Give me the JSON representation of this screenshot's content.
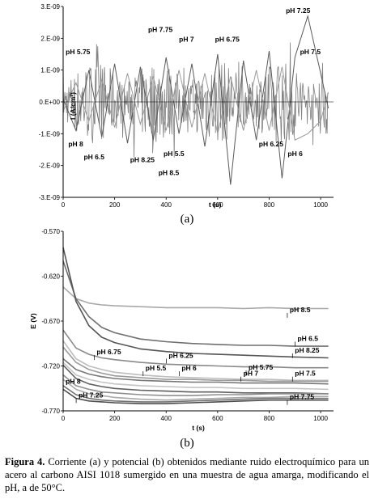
{
  "chart_data": [
    {
      "type": "line",
      "panel_label": "(a)",
      "xlabel": "t (s)",
      "ylabel": "I (A/cm²)",
      "xlim": [
        0,
        1050
      ],
      "ylim": [
        -3e-09,
        3e-09
      ],
      "x_ticks": [
        "0",
        "200",
        "400",
        "600",
        "800",
        "1000"
      ],
      "x_tick_values": [
        0,
        200,
        400,
        600,
        800,
        1000
      ],
      "y_ticks": [
        "3.E-09",
        "2.E-09",
        "1.E-09",
        "0.E+00",
        "-1.E-09",
        "-2.E-09",
        "-3.E-09"
      ],
      "y_tick_values": [
        3e-09,
        2e-09,
        1e-09,
        0,
        -1e-09,
        -2e-09,
        -3e-09
      ],
      "grid": false,
      "series_color": "#7f7f7f",
      "x": [
        0,
        50,
        100,
        150,
        200,
        250,
        300,
        350,
        400,
        450,
        500,
        550,
        600,
        650,
        700,
        750,
        800,
        850,
        900,
        950,
        1000,
        1030
      ],
      "series": [
        {
          "values": [
            1e-10,
            -9e-10,
            1e-09,
            -1.1e-09,
            1.2e-09,
            -1.3e-09,
            1.1e-09,
            -1.2e-09,
            1.4e-09,
            -1e-09,
            1.2e-09,
            -1.4e-09,
            1.5e-09,
            -2.6e-09,
            1.3e-09,
            -1.2e-09,
            1.6e-09,
            -2.4e-09,
            1.4e-09,
            2.7e-09,
            9e-10,
            -2e-10
          ]
        },
        {
          "values": [
            -3e-10,
            6e-10,
            -6e-10,
            7e-10,
            -8e-10,
            9e-10,
            -7e-10,
            8e-10,
            -9e-10,
            1e-09,
            -8e-10,
            9e-10,
            -1e-09,
            8e-10,
            -9e-10,
            1e-09,
            -9e-10,
            1.1e-09,
            -1.2e-09,
            -1e-09,
            -6e-10,
            3e-10
          ]
        }
      ],
      "annotations": [
        {
          "text": "pH 5.75",
          "x": 10,
          "y": 1.5e-09
        },
        {
          "text": "pH 7.75",
          "x": 330,
          "y": 2.2e-09
        },
        {
          "text": "pH 7",
          "x": 450,
          "y": 1.9e-09
        },
        {
          "text": "pH 6.75",
          "x": 590,
          "y": 1.9e-09
        },
        {
          "text": "pH 7.25",
          "x": 960,
          "y": 2.8e-09
        },
        {
          "text": "pH 7.5",
          "x": 1000,
          "y": 1.5e-09
        },
        {
          "text": "pH 8",
          "x": 20,
          "y": -1.4e-09
        },
        {
          "text": "pH 6.5",
          "x": 80,
          "y": -1.8e-09
        },
        {
          "text": "pH 8.25",
          "x": 260,
          "y": -1.9e-09
        },
        {
          "text": "pH 5.5",
          "x": 390,
          "y": -1.7e-09
        },
        {
          "text": "pH 8.5",
          "x": 370,
          "y": -2.3e-09
        },
        {
          "text": "pH 6.25",
          "x": 760,
          "y": -1.4e-09
        },
        {
          "text": "pH 6",
          "x": 930,
          "y": -1.7e-09
        }
      ]
    },
    {
      "type": "line",
      "panel_label": "(b)",
      "xlabel": "t (s)",
      "ylabel": "E (V)",
      "xlim": [
        0,
        1050
      ],
      "ylim": [
        -0.77,
        -0.57
      ],
      "x_ticks": [
        "0",
        "200",
        "400",
        "600",
        "800",
        "1000"
      ],
      "x_tick_values": [
        0,
        200,
        400,
        600,
        800,
        1000
      ],
      "y_ticks": [
        "-0.570",
        "-0.620",
        "-0.670",
        "-0.720",
        "-0.770"
      ],
      "y_tick_values": [
        -0.57,
        -0.62,
        -0.67,
        -0.72,
        -0.77
      ],
      "grid": false,
      "x": [
        0,
        50,
        100,
        150,
        200,
        300,
        400,
        500,
        600,
        700,
        800,
        900,
        1030
      ],
      "series": [
        {
          "name": "pH 8.5",
          "values": [
            -0.632,
            -0.645,
            -0.65,
            -0.652,
            -0.653,
            -0.654,
            -0.655,
            -0.655,
            -0.655,
            -0.656,
            -0.655,
            -0.656,
            -0.656
          ]
        },
        {
          "name": "pH 6.5",
          "values": [
            -0.603,
            -0.645,
            -0.665,
            -0.677,
            -0.683,
            -0.69,
            -0.693,
            -0.695,
            -0.696,
            -0.697,
            -0.697,
            -0.698,
            -0.698
          ]
        },
        {
          "name": "pH 8.25",
          "values": [
            -0.588,
            -0.648,
            -0.675,
            -0.688,
            -0.694,
            -0.701,
            -0.704,
            -0.706,
            -0.707,
            -0.708,
            -0.709,
            -0.71,
            -0.711
          ]
        },
        {
          "name": "pH 6.25",
          "values": [
            -0.68,
            -0.7,
            -0.707,
            -0.711,
            -0.713,
            -0.716,
            -0.718,
            -0.719,
            -0.72,
            -0.721,
            -0.721,
            -0.722,
            -0.722
          ]
        },
        {
          "name": "pH 6.75",
          "values": [
            -0.692,
            -0.712,
            -0.72,
            -0.724,
            -0.727,
            -0.73,
            -0.732,
            -0.733,
            -0.734,
            -0.735,
            -0.735,
            -0.736,
            -0.736
          ]
        },
        {
          "name": "pH 5.5",
          "values": [
            -0.699,
            -0.716,
            -0.724,
            -0.728,
            -0.731,
            -0.733,
            -0.735,
            -0.735,
            -0.736,
            -0.736,
            -0.737,
            -0.737,
            -0.737
          ]
        },
        {
          "name": "pH 6",
          "values": [
            -0.712,
            -0.724,
            -0.729,
            -0.732,
            -0.734,
            -0.736,
            -0.737,
            -0.738,
            -0.738,
            -0.739,
            -0.739,
            -0.739,
            -0.74
          ]
        },
        {
          "name": "pH 5.75",
          "values": [
            -0.716,
            -0.73,
            -0.735,
            -0.738,
            -0.74,
            -0.742,
            -0.743,
            -0.744,
            -0.744,
            -0.745,
            -0.745,
            -0.745,
            -0.746
          ]
        },
        {
          "name": "pH 7",
          "values": [
            -0.719,
            -0.734,
            -0.74,
            -0.743,
            -0.745,
            -0.747,
            -0.748,
            -0.749,
            -0.749,
            -0.75,
            -0.75,
            -0.75,
            -0.751
          ]
        },
        {
          "name": "pH 7.5",
          "values": [
            -0.73,
            -0.742,
            -0.746,
            -0.749,
            -0.75,
            -0.752,
            -0.753,
            -0.753,
            -0.752,
            -0.752,
            -0.751,
            -0.751,
            -0.751
          ]
        },
        {
          "name": "pH 8",
          "values": [
            -0.735,
            -0.746,
            -0.751,
            -0.753,
            -0.755,
            -0.757,
            -0.758,
            -0.757,
            -0.756,
            -0.755,
            -0.755,
            -0.754,
            -0.754
          ]
        },
        {
          "name": "pH 7.75",
          "values": [
            -0.742,
            -0.752,
            -0.756,
            -0.758,
            -0.759,
            -0.76,
            -0.76,
            -0.759,
            -0.758,
            -0.757,
            -0.756,
            -0.756,
            -0.756
          ]
        },
        {
          "name": "pH 7.25",
          "values": [
            -0.746,
            -0.756,
            -0.759,
            -0.76,
            -0.761,
            -0.762,
            -0.762,
            -0.761,
            -0.76,
            -0.759,
            -0.758,
            -0.758,
            -0.758
          ]
        }
      ],
      "label_points": [
        {
          "text": "pH 8.5",
          "x": 880,
          "y": -0.66
        },
        {
          "text": "pH 6.5",
          "x": 910,
          "y": -0.692
        },
        {
          "text": "pH 8.25",
          "x": 900,
          "y": -0.705
        },
        {
          "text": "pH 6.75",
          "x": 130,
          "y": -0.707
        },
        {
          "text": "pH 6.25",
          "x": 410,
          "y": -0.711
        },
        {
          "text": "pH 5.5",
          "x": 320,
          "y": -0.725
        },
        {
          "text": "pH 6",
          "x": 460,
          "y": -0.725
        },
        {
          "text": "pH 5.75",
          "x": 720,
          "y": -0.724
        },
        {
          "text": "pH 7",
          "x": 700,
          "y": -0.731
        },
        {
          "text": "pH 7.5",
          "x": 900,
          "y": -0.731
        },
        {
          "text": "pH 8",
          "x": 10,
          "y": -0.74
        },
        {
          "text": "pH 7.25",
          "x": 60,
          "y": -0.755
        },
        {
          "text": "pH 7.75",
          "x": 880,
          "y": -0.757
        }
      ]
    }
  ],
  "caption": {
    "prefix": "Figura 4.",
    "text": " Corriente (a) y potencial (b) obtenidos mediante ruido electroquímico para un acero al carbono AISI 1018 sumergido en una muestra de agua amarga, modificando el pH, a de 50°C."
  }
}
